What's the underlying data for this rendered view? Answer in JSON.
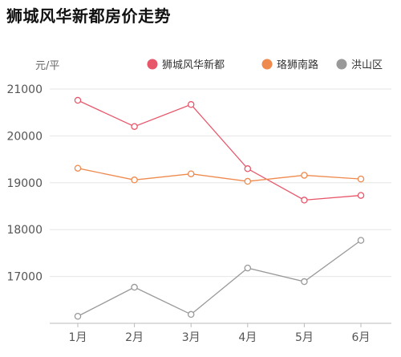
{
  "page": {
    "title": "狮城风华新都房价走势"
  },
  "chart_data": {
    "type": "line",
    "title": "狮城风华新都房价走势",
    "ylabel": "元/平",
    "xlabel": "",
    "categories": [
      "1月",
      "2月",
      "3月",
      "4月",
      "5月",
      "6月"
    ],
    "ylim": [
      16000,
      21000
    ],
    "yticks": [
      "21000",
      "20000",
      "19000",
      "18000",
      "17000"
    ],
    "grid": true,
    "legend_position": "top-right",
    "series": [
      {
        "name": "狮城风华新都",
        "color": "#e8566a",
        "values": [
          20760,
          20200,
          20670,
          19300,
          18630,
          18730
        ]
      },
      {
        "name": "珞狮南路",
        "color": "#ef8a4e",
        "values": [
          19310,
          19060,
          19190,
          19030,
          19160,
          19080
        ]
      },
      {
        "name": "洪山区",
        "color": "#999999",
        "values": [
          16150,
          16770,
          16190,
          17180,
          16890,
          17770
        ]
      }
    ]
  }
}
